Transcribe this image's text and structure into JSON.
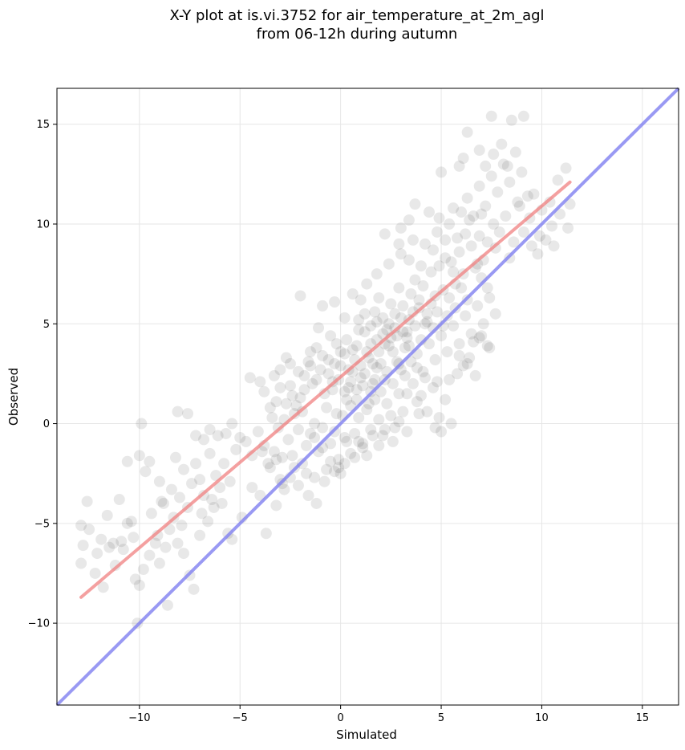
{
  "chart_data": {
    "type": "scatter",
    "title_line1": "X-Y plot at is.vi.3752 for air_temperature_at_2m_agl",
    "title_line2": "from 06-12h during autumn",
    "xlabel": "Simulated",
    "ylabel": "Observed",
    "xlim": [
      -14.1,
      16.8
    ],
    "ylim": [
      -14.1,
      16.8
    ],
    "xticks": [
      -10,
      -5,
      0,
      5,
      10,
      15
    ],
    "yticks": [
      -10,
      -5,
      0,
      5,
      10,
      15
    ],
    "xtick_labels": [
      "−10",
      "−5",
      "0",
      "5",
      "10",
      "15"
    ],
    "ytick_labels": [
      "−10",
      "−5",
      "0",
      "5",
      "10",
      "15"
    ],
    "grid": true,
    "point_color": "#000000",
    "point_alpha": 0.09,
    "regression_line": {
      "x": [
        -12.9,
        11.4
      ],
      "y": [
        -8.7,
        12.1
      ],
      "color": "#f08080"
    },
    "identity_line": {
      "x": [
        -14.1,
        16.8
      ],
      "y": [
        -14.1,
        16.8
      ],
      "color": "#8080f0"
    },
    "points": [
      [
        -12.9,
        -5.1
      ],
      [
        -12.6,
        -3.9
      ],
      [
        -12.8,
        -6.1
      ],
      [
        -12.5,
        -5.3
      ],
      [
        -12.1,
        -6.5
      ],
      [
        -11.9,
        -5.8
      ],
      [
        -11.5,
        -6.2
      ],
      [
        -11.2,
        -7.1
      ],
      [
        -10.9,
        -5.9
      ],
      [
        -10.6,
        -5.0
      ],
      [
        -10.8,
        -6.3
      ],
      [
        -10.2,
        -7.8
      ],
      [
        -10.0,
        -8.1
      ],
      [
        -9.8,
        -7.3
      ],
      [
        -9.5,
        -6.6
      ],
      [
        -9.2,
        -6.0
      ],
      [
        -9.0,
        -7.0
      ],
      [
        -8.7,
        -6.2
      ],
      [
        -8.5,
        -5.3
      ],
      [
        -8.1,
        -6.0
      ],
      [
        -7.8,
        -6.5
      ],
      [
        -7.5,
        -7.6
      ],
      [
        -7.3,
        -8.3
      ],
      [
        -7.0,
        -5.6
      ],
      [
        -6.6,
        -4.9
      ],
      [
        -12.2,
        -7.5
      ],
      [
        -11.8,
        -8.2
      ],
      [
        -10.1,
        -10.0
      ],
      [
        -8.6,
        -9.1
      ],
      [
        -12.9,
        -7.0
      ],
      [
        -11.6,
        -4.6
      ],
      [
        -11.0,
        -3.8
      ],
      [
        -10.4,
        -4.9
      ],
      [
        -10.6,
        -1.9
      ],
      [
        -10.0,
        -1.6
      ],
      [
        -9.7,
        -2.4
      ],
      [
        -9.5,
        -1.9
      ],
      [
        -9.0,
        -2.9
      ],
      [
        -8.8,
        -4.0
      ],
      [
        -8.4,
        -3.3
      ],
      [
        -8.2,
        -1.7
      ],
      [
        -8.0,
        -3.7
      ],
      [
        -7.8,
        -2.3
      ],
      [
        -7.6,
        -4.2
      ],
      [
        -7.4,
        -3.0
      ],
      [
        -7.2,
        -2.0
      ],
      [
        -7.0,
        -2.8
      ],
      [
        -6.8,
        -3.6
      ],
      [
        -6.5,
        -1.5
      ],
      [
        -6.2,
        -2.6
      ],
      [
        -6.0,
        -3.2
      ],
      [
        -5.8,
        -2.0
      ],
      [
        -5.5,
        -2.9
      ],
      [
        -5.2,
        -1.3
      ],
      [
        -9.9,
        0.0
      ],
      [
        -8.1,
        0.6
      ],
      [
        -7.6,
        0.5
      ],
      [
        -7.2,
        -0.6
      ],
      [
        -6.8,
        -0.8
      ],
      [
        -6.5,
        -0.3
      ],
      [
        -6.1,
        -0.6
      ],
      [
        -5.7,
        -0.5
      ],
      [
        -5.4,
        0.0
      ],
      [
        -5.0,
        -0.7
      ],
      [
        -4.7,
        -0.9
      ],
      [
        -4.4,
        -1.6
      ],
      [
        -4.1,
        -0.4
      ],
      [
        -3.8,
        -1.1
      ],
      [
        -3.5,
        -2.2
      ],
      [
        -3.3,
        -1.4
      ],
      [
        -6.3,
        -4.2
      ],
      [
        -5.6,
        -5.5
      ],
      [
        -5.4,
        -5.8
      ],
      [
        -4.9,
        -4.7
      ],
      [
        -4.4,
        -3.2
      ],
      [
        -4.0,
        -3.6
      ],
      [
        -3.7,
        -5.5
      ],
      [
        -3.2,
        -4.1
      ],
      [
        -3.0,
        -2.8
      ],
      [
        -2.8,
        -3.3
      ],
      [
        -7.9,
        -5.1
      ],
      [
        -8.3,
        -4.7
      ],
      [
        -9.4,
        -4.5
      ],
      [
        -8.9,
        -3.9
      ],
      [
        -6.9,
        -4.5
      ],
      [
        -6.4,
        -3.8
      ],
      [
        -5.9,
        -4.0
      ],
      [
        -9.1,
        -5.6
      ],
      [
        -10.3,
        -5.7
      ],
      [
        -11.3,
        -6.0
      ],
      [
        -4.5,
        2.3
      ],
      [
        -4.0,
        2.1
      ],
      [
        -3.8,
        1.6
      ],
      [
        -3.5,
        0.8
      ],
      [
        -3.2,
        1.1
      ],
      [
        -3.0,
        2.7
      ],
      [
        -2.7,
        3.3
      ],
      [
        -2.5,
        1.9
      ],
      [
        -2.3,
        0.5
      ],
      [
        -2.0,
        1.3
      ],
      [
        -1.8,
        2.4
      ],
      [
        -1.6,
        3.1
      ],
      [
        -1.4,
        2.0
      ],
      [
        -1.2,
        3.8
      ],
      [
        -1.0,
        2.7
      ],
      [
        -0.8,
        1.5
      ],
      [
        -0.6,
        3.2
      ],
      [
        -0.4,
        2.1
      ],
      [
        -0.2,
        4.0
      ],
      [
        0.0,
        2.9
      ],
      [
        0.2,
        3.5
      ],
      [
        0.4,
        1.8
      ],
      [
        0.6,
        2.6
      ],
      [
        0.8,
        3.9
      ],
      [
        1.0,
        2.3
      ],
      [
        1.2,
        4.6
      ],
      [
        1.4,
        3.3
      ],
      [
        1.6,
        2.0
      ],
      [
        1.8,
        4.2
      ],
      [
        2.0,
        3.0
      ],
      [
        -2.6,
        -0.8
      ],
      [
        -2.4,
        -1.6
      ],
      [
        -2.1,
        -0.3
      ],
      [
        -1.9,
        -2.0
      ],
      [
        -1.7,
        -1.1
      ],
      [
        -1.5,
        -0.5
      ],
      [
        -1.3,
        -2.7
      ],
      [
        -1.1,
        -1.4
      ],
      [
        -0.9,
        -0.2
      ],
      [
        -0.7,
        -2.3
      ],
      [
        -0.5,
        -1.0
      ],
      [
        -0.3,
        -0.4
      ],
      [
        -0.1,
        -1.8
      ],
      [
        0.1,
        0.4
      ],
      [
        0.3,
        -0.9
      ],
      [
        0.5,
        0.9
      ],
      [
        0.7,
        -0.5
      ],
      [
        0.9,
        0.3
      ],
      [
        1.1,
        -1.2
      ],
      [
        1.3,
        0.7
      ],
      [
        1.5,
        -0.3
      ],
      [
        1.7,
        1.2
      ],
      [
        1.9,
        0.2
      ],
      [
        2.1,
        -0.6
      ],
      [
        2.3,
        1.0
      ],
      [
        2.5,
        0.4
      ],
      [
        2.7,
        -0.2
      ],
      [
        2.9,
        1.5
      ],
      [
        3.1,
        0.6
      ],
      [
        3.3,
        -0.4
      ],
      [
        -1.6,
        -3.6
      ],
      [
        -1.2,
        -4.0
      ],
      [
        -0.8,
        -2.9
      ],
      [
        -0.3,
        -2.4
      ],
      [
        0.2,
        -2.0
      ],
      [
        0.7,
        -1.7
      ],
      [
        1.1,
        -1.0
      ],
      [
        0.0,
        -2.5
      ],
      [
        -2.3,
        -2.2
      ],
      [
        -2.9,
        -1.7
      ],
      [
        -3.1,
        -0.2
      ],
      [
        -3.4,
        0.3
      ],
      [
        -2.8,
        0.2
      ],
      [
        -2.2,
        0.9
      ],
      [
        -1.9,
        0.6
      ],
      [
        -1.3,
        0.0
      ],
      [
        -0.7,
        0.8
      ],
      [
        -0.2,
        0.5
      ],
      [
        0.3,
        1.2
      ],
      [
        0.8,
        1.7
      ],
      [
        1.2,
        2.5
      ],
      [
        1.5,
        1.6
      ],
      [
        1.8,
        2.8
      ],
      [
        2.2,
        2.2
      ],
      [
        2.6,
        3.6
      ],
      [
        2.4,
        5.0
      ],
      [
        2.8,
        4.4
      ],
      [
        3.0,
        2.7
      ],
      [
        3.2,
        3.8
      ],
      [
        3.4,
        5.2
      ],
      [
        1.5,
        4.9
      ],
      [
        1.7,
        5.6
      ],
      [
        1.9,
        6.3
      ],
      [
        2.1,
        5.3
      ],
      [
        2.3,
        4.7
      ],
      [
        2.5,
        6.0
      ],
      [
        2.7,
        5.5
      ],
      [
        2.9,
        6.8
      ],
      [
        3.1,
        5.9
      ],
      [
        3.3,
        4.6
      ],
      [
        3.5,
        6.5
      ],
      [
        3.7,
        7.2
      ],
      [
        3.9,
        5.8
      ],
      [
        4.1,
        6.9
      ],
      [
        4.3,
        5.1
      ],
      [
        4.5,
        7.6
      ],
      [
        4.7,
        6.4
      ],
      [
        4.9,
        7.9
      ],
      [
        5.1,
        6.7
      ],
      [
        5.3,
        5.4
      ],
      [
        5.5,
        8.1
      ],
      [
        5.7,
        7.0
      ],
      [
        5.9,
        8.6
      ],
      [
        6.1,
        7.5
      ],
      [
        6.3,
        6.2
      ],
      [
        6.5,
        8.9
      ],
      [
        6.7,
        7.8
      ],
      [
        6.9,
        9.4
      ],
      [
        7.1,
        8.2
      ],
      [
        7.3,
        6.8
      ],
      [
        1.0,
        6.2
      ],
      [
        1.3,
        7.0
      ],
      [
        0.6,
        6.5
      ],
      [
        1.8,
        7.5
      ],
      [
        2.4,
        8.0
      ],
      [
        3.0,
        8.5
      ],
      [
        3.6,
        9.2
      ],
      [
        4.2,
        9.0
      ],
      [
        4.8,
        9.6
      ],
      [
        5.4,
        10.0
      ],
      [
        2.2,
        9.5
      ],
      [
        2.9,
        9.0
      ],
      [
        3.4,
        8.2
      ],
      [
        4.0,
        7.9
      ],
      [
        4.6,
        8.7
      ],
      [
        5.2,
        8.3
      ],
      [
        5.8,
        9.3
      ],
      [
        6.4,
        10.2
      ],
      [
        7.0,
        10.5
      ],
      [
        7.6,
        10.0
      ],
      [
        0.2,
        5.3
      ],
      [
        -0.5,
        4.4
      ],
      [
        -1.1,
        4.8
      ],
      [
        -1.5,
        3.6
      ],
      [
        -0.9,
        5.9
      ],
      [
        -2.0,
        6.4
      ],
      [
        -2.5,
        3.0
      ],
      [
        -3.3,
        2.4
      ],
      [
        -0.3,
        6.1
      ],
      [
        0.9,
        5.2
      ],
      [
        3.8,
        3.5
      ],
      [
        4.1,
        2.6
      ],
      [
        4.4,
        4.0
      ],
      [
        4.7,
        3.2
      ],
      [
        5.0,
        4.4
      ],
      [
        5.3,
        3.6
      ],
      [
        5.6,
        4.9
      ],
      [
        5.9,
        4.0
      ],
      [
        6.2,
        5.4
      ],
      [
        6.5,
        4.5
      ],
      [
        6.8,
        5.9
      ],
      [
        7.1,
        5.0
      ],
      [
        7.4,
        6.3
      ],
      [
        7.7,
        5.5
      ],
      [
        3.6,
        2.0
      ],
      [
        4.0,
        1.4
      ],
      [
        4.3,
        0.6
      ],
      [
        4.6,
        1.8
      ],
      [
        4.9,
        0.3
      ],
      [
        5.2,
        1.2
      ],
      [
        5.5,
        0.0
      ],
      [
        5.8,
        2.5
      ],
      [
        6.1,
        2.9
      ],
      [
        6.4,
        3.3
      ],
      [
        6.7,
        2.4
      ],
      [
        7.0,
        4.4
      ],
      [
        7.4,
        3.8
      ],
      [
        5.0,
        -0.4
      ],
      [
        4.7,
        -0.2
      ],
      [
        3.9,
        0.5
      ],
      [
        6.0,
        10.6
      ],
      [
        6.3,
        11.3
      ],
      [
        6.6,
        10.4
      ],
      [
        6.9,
        11.9
      ],
      [
        7.2,
        10.9
      ],
      [
        7.5,
        12.4
      ],
      [
        7.8,
        11.6
      ],
      [
        8.1,
        13.0
      ],
      [
        8.4,
        12.1
      ],
      [
        8.7,
        13.6
      ],
      [
        9.0,
        12.6
      ],
      [
        9.3,
        11.4
      ],
      [
        7.6,
        13.5
      ],
      [
        8.0,
        14.0
      ],
      [
        8.5,
        15.2
      ],
      [
        9.1,
        15.4
      ],
      [
        7.5,
        15.4
      ],
      [
        6.3,
        14.6
      ],
      [
        6.9,
        13.7
      ],
      [
        7.2,
        12.9
      ],
      [
        5.9,
        12.9
      ],
      [
        5.0,
        12.6
      ],
      [
        6.1,
        13.3
      ],
      [
        8.3,
        12.9
      ],
      [
        9.6,
        11.5
      ],
      [
        8.8,
        11.1
      ],
      [
        8.2,
        10.4
      ],
      [
        7.9,
        9.6
      ],
      [
        8.6,
        9.1
      ],
      [
        9.4,
        10.3
      ],
      [
        9.1,
        9.6
      ],
      [
        9.5,
        8.9
      ],
      [
        9.8,
        8.5
      ],
      [
        10.2,
        9.2
      ],
      [
        10.5,
        9.9
      ],
      [
        10.9,
        10.5
      ],
      [
        11.3,
        9.8
      ],
      [
        10.0,
        10.7
      ],
      [
        10.4,
        11.1
      ],
      [
        10.8,
        12.2
      ],
      [
        11.2,
        12.8
      ],
      [
        11.4,
        11.0
      ],
      [
        10.6,
        8.9
      ],
      [
        9.9,
        9.4
      ],
      [
        8.9,
        10.9
      ],
      [
        8.4,
        8.3
      ],
      [
        7.7,
        8.8
      ],
      [
        7.3,
        9.1
      ],
      [
        6.8,
        8.0
      ],
      [
        6.2,
        9.5
      ],
      [
        5.6,
        10.8
      ],
      [
        4.9,
        10.3
      ],
      [
        4.4,
        10.6
      ],
      [
        3.7,
        11.0
      ],
      [
        3.4,
        10.2
      ],
      [
        3.0,
        9.8
      ],
      [
        5.2,
        9.2
      ],
      [
        5.6,
        7.6
      ],
      [
        6.0,
        6.8
      ],
      [
        7.0,
        7.3
      ],
      [
        7.3,
        3.9
      ],
      [
        6.9,
        4.3
      ],
      [
        6.6,
        4.1
      ],
      [
        6.3,
        3.0
      ],
      [
        5.9,
        3.4
      ],
      [
        5.4,
        2.2
      ],
      [
        4.8,
        2.1
      ],
      [
        4.2,
        2.3
      ],
      [
        3.8,
        1.1
      ],
      [
        3.3,
        1.5
      ],
      [
        2.9,
        0.1
      ],
      [
        2.6,
        -0.9
      ],
      [
        2.2,
        -0.3
      ],
      [
        1.9,
        -1.1
      ],
      [
        1.6,
        -0.6
      ],
      [
        1.3,
        -1.6
      ],
      [
        0.9,
        -0.9
      ],
      [
        0.5,
        -1.5
      ],
      [
        0.2,
        -0.7
      ],
      [
        -0.1,
        -2.2
      ],
      [
        -0.5,
        -1.9
      ],
      [
        -0.9,
        -1.2
      ],
      [
        -1.3,
        -0.7
      ],
      [
        -1.7,
        -2.5
      ],
      [
        -2.1,
        -3.1
      ],
      [
        -2.5,
        -2.7
      ],
      [
        -2.9,
        -3.0
      ],
      [
        -3.2,
        -1.8
      ],
      [
        -3.6,
        -2.0
      ],
      [
        -3.9,
        -1.4
      ],
      [
        0.0,
        3.6
      ],
      [
        0.3,
        4.2
      ],
      [
        0.6,
        3.7
      ],
      [
        0.9,
        4.7
      ],
      [
        1.2,
        5.5
      ],
      [
        1.5,
        4.0
      ],
      [
        1.8,
        5.1
      ],
      [
        2.1,
        4.5
      ],
      [
        2.4,
        3.9
      ],
      [
        2.7,
        4.8
      ],
      [
        3.0,
        5.3
      ],
      [
        3.3,
        4.3
      ],
      [
        3.6,
        5.6
      ],
      [
        3.9,
        6.2
      ],
      [
        4.2,
        5.0
      ],
      [
        4.5,
        6.0
      ],
      [
        4.8,
        5.6
      ],
      [
        5.1,
        4.9
      ],
      [
        5.4,
        6.3
      ],
      [
        5.7,
        5.8
      ],
      [
        -0.3,
        3.0
      ],
      [
        -0.6,
        2.5
      ],
      [
        -0.9,
        3.4
      ],
      [
        -1.2,
        2.2
      ],
      [
        -1.5,
        2.9
      ],
      [
        -1.8,
        1.7
      ],
      [
        -2.1,
        2.6
      ],
      [
        -2.4,
        1.4
      ],
      [
        -2.7,
        1.0
      ],
      [
        -3.0,
        1.8
      ],
      [
        1.9,
        3.6
      ],
      [
        2.2,
        4.0
      ],
      [
        2.5,
        4.3
      ],
      [
        2.8,
        3.1
      ],
      [
        3.1,
        4.6
      ],
      [
        3.4,
        3.9
      ],
      [
        3.7,
        4.9
      ],
      [
        4.0,
        4.2
      ],
      [
        4.3,
        5.5
      ],
      [
        4.6,
        4.8
      ],
      [
        0.4,
        2.7
      ],
      [
        0.7,
        3.2
      ],
      [
        1.0,
        2.9
      ],
      [
        1.3,
        3.6
      ],
      [
        1.6,
        3.0
      ],
      [
        -0.4,
        1.7
      ],
      [
        -0.1,
        2.2
      ],
      [
        0.2,
        1.6
      ],
      [
        0.5,
        2.1
      ],
      [
        0.8,
        1.2
      ],
      [
        1.1,
        1.9
      ],
      [
        1.4,
        1.0
      ],
      [
        1.7,
        2.2
      ],
      [
        2.0,
        1.6
      ],
      [
        2.3,
        2.6
      ],
      [
        2.6,
        2.0
      ],
      [
        2.9,
        3.0
      ],
      [
        3.2,
        2.4
      ],
      [
        3.5,
        3.1
      ],
      [
        3.8,
        2.8
      ]
    ]
  }
}
